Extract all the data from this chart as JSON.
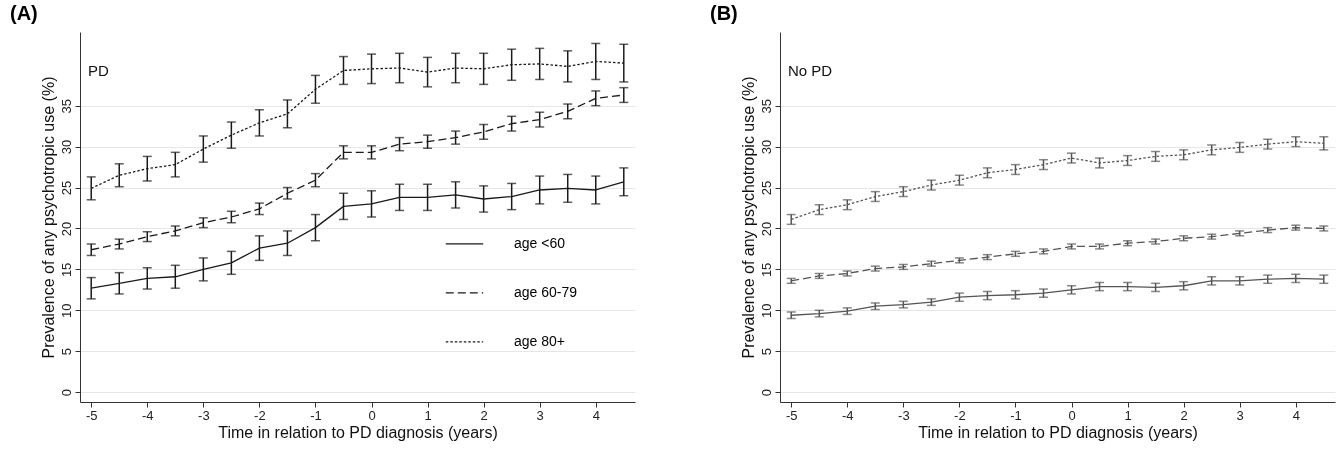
{
  "chart_data": [
    {
      "type": "line",
      "title": "(A)",
      "annotations": [
        "PD"
      ],
      "xlabel": "Time in relation to PD diagnosis (years)",
      "ylabel": "Prevalence of any psychotropic use (%)",
      "x": [
        -5,
        -4.5,
        -4,
        -3.5,
        -3,
        -2.5,
        -2,
        -1.5,
        -1,
        -0.5,
        0,
        0.5,
        1,
        1.5,
        2,
        2.5,
        3,
        3.5,
        4,
        4.5
      ],
      "xlim": [
        -5.2,
        4.7
      ],
      "xticks": [
        -5,
        -4,
        -3,
        -2,
        -1,
        0,
        1,
        2,
        3,
        4
      ],
      "ylim": [
        -1.2,
        44
      ],
      "yticks": [
        0,
        5,
        10,
        15,
        20,
        25,
        30,
        35
      ],
      "grid": "y",
      "legend": "right",
      "series": [
        {
          "name": "age <60",
          "color": "#1a1a1a",
          "line_style": "solid",
          "values": [
            12.7,
            13.3,
            13.9,
            14.1,
            15.0,
            15.8,
            17.6,
            18.2,
            20.1,
            22.7,
            23.0,
            23.8,
            23.8,
            24.1,
            23.6,
            23.9,
            24.7,
            24.9,
            24.7,
            25.7
          ],
          "errors": [
            1.3,
            1.3,
            1.3,
            1.4,
            1.4,
            1.4,
            1.5,
            1.5,
            1.6,
            1.6,
            1.6,
            1.6,
            1.6,
            1.6,
            1.6,
            1.6,
            1.7,
            1.7,
            1.7,
            1.7
          ]
        },
        {
          "name": "age 60-79",
          "color": "#1a1a1a",
          "line_style": "dashed",
          "values": [
            17.4,
            18.1,
            19.0,
            19.7,
            20.7,
            21.4,
            22.4,
            24.3,
            25.9,
            29.3,
            29.3,
            30.3,
            30.6,
            31.1,
            31.8,
            32.8,
            33.3,
            34.3,
            35.9,
            36.3
          ],
          "errors": [
            0.7,
            0.6,
            0.6,
            0.6,
            0.6,
            0.7,
            0.7,
            0.7,
            0.8,
            0.8,
            0.8,
            0.8,
            0.8,
            0.8,
            0.9,
            0.9,
            0.9,
            0.9,
            0.9,
            0.9
          ]
        },
        {
          "name": "age 80+",
          "color": "#1a1a1a",
          "line_style": "dotted",
          "values": [
            24.9,
            26.5,
            27.3,
            27.8,
            29.7,
            31.4,
            32.9,
            34.0,
            37.0,
            39.3,
            39.5,
            39.6,
            39.1,
            39.6,
            39.5,
            40.0,
            40.1,
            39.8,
            40.4,
            40.2
          ],
          "errors": [
            1.4,
            1.4,
            1.5,
            1.5,
            1.6,
            1.6,
            1.6,
            1.7,
            1.7,
            1.7,
            1.8,
            1.8,
            1.8,
            1.8,
            1.9,
            1.9,
            1.9,
            1.9,
            2.2,
            2.3
          ]
        }
      ]
    },
    {
      "type": "line",
      "title": "(B)",
      "annotations": [
        "No PD"
      ],
      "xlabel": "Time in relation to PD diagnosis (years)",
      "ylabel": "Prevalence of any psychotropic use (%)",
      "x": [
        -5,
        -4.5,
        -4,
        -3.5,
        -3,
        -2.5,
        -2,
        -1.5,
        -1,
        -0.5,
        0,
        0.5,
        1,
        1.5,
        2,
        2.5,
        3,
        3.5,
        4,
        4.5
      ],
      "xlim": [
        -5.2,
        4.7
      ],
      "xticks": [
        -5,
        -4,
        -3,
        -2,
        -1,
        0,
        1,
        2,
        3,
        4
      ],
      "ylim": [
        -1.2,
        44
      ],
      "yticks": [
        0,
        5,
        10,
        15,
        20,
        25,
        30,
        35
      ],
      "grid": "y",
      "series": [
        {
          "color": "#555555",
          "line_style": "solid",
          "values": [
            9.4,
            9.6,
            9.9,
            10.5,
            10.7,
            11.0,
            11.6,
            11.8,
            11.9,
            12.1,
            12.5,
            12.9,
            12.9,
            12.8,
            13.0,
            13.6,
            13.6,
            13.8,
            13.9,
            13.8
          ],
          "errors": [
            0.4,
            0.4,
            0.4,
            0.4,
            0.4,
            0.4,
            0.5,
            0.5,
            0.5,
            0.5,
            0.5,
            0.5,
            0.5,
            0.5,
            0.5,
            0.5,
            0.5,
            0.5,
            0.5,
            0.5
          ]
        },
        {
          "color": "#555555",
          "line_style": "dashed",
          "values": [
            13.6,
            14.2,
            14.5,
            15.1,
            15.3,
            15.7,
            16.1,
            16.5,
            16.9,
            17.2,
            17.8,
            17.8,
            18.2,
            18.4,
            18.8,
            19.0,
            19.4,
            19.8,
            20.1,
            20.0
          ],
          "errors": [
            0.3,
            0.3,
            0.3,
            0.3,
            0.3,
            0.3,
            0.3,
            0.3,
            0.3,
            0.3,
            0.3,
            0.3,
            0.3,
            0.3,
            0.3,
            0.3,
            0.3,
            0.3,
            0.3,
            0.3
          ]
        },
        {
          "color": "#555555",
          "line_style": "dotted",
          "values": [
            21.1,
            22.3,
            22.9,
            23.9,
            24.5,
            25.3,
            25.9,
            26.8,
            27.2,
            27.8,
            28.6,
            28.0,
            28.3,
            28.8,
            29.0,
            29.6,
            29.9,
            30.3,
            30.6,
            30.4
          ],
          "errors": [
            0.6,
            0.6,
            0.6,
            0.6,
            0.6,
            0.6,
            0.6,
            0.6,
            0.6,
            0.6,
            0.6,
            0.6,
            0.6,
            0.6,
            0.6,
            0.6,
            0.6,
            0.6,
            0.6,
            0.8
          ]
        }
      ]
    }
  ]
}
